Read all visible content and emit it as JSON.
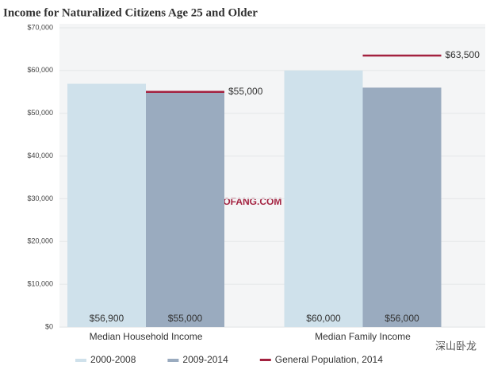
{
  "chart_data": {
    "type": "bar",
    "title": "Income for Naturalized Citizens Age 25 and Older",
    "categories": [
      "Median Household Income",
      "Median Family Income"
    ],
    "series": [
      {
        "name": "2000-2008",
        "color": "#cfe1eb",
        "values": [
          56900,
          60000
        ],
        "value_labels": [
          "$56,900",
          "$60,000"
        ]
      },
      {
        "name": "2009-2014",
        "color": "#9aabbf",
        "values": [
          55000,
          56000
        ],
        "value_labels": [
          "$55,000",
          "$56,000"
        ]
      },
      {
        "name": "General Population, 2014",
        "color": "#a3213f",
        "kind": "reference",
        "values": [
          55000,
          63500
        ],
        "value_labels": [
          "$55,000",
          "$63,500"
        ]
      }
    ],
    "ylim": [
      0,
      70000
    ],
    "yticks": [
      {
        "value": 0,
        "label": "$0"
      },
      {
        "value": 10000,
        "label": "$10,000"
      },
      {
        "value": 20000,
        "label": "$20,000"
      },
      {
        "value": 30000,
        "label": "$30,000"
      },
      {
        "value": 40000,
        "label": "$40,000"
      },
      {
        "value": 50000,
        "label": "$50,000"
      },
      {
        "value": 60000,
        "label": "$60,000"
      },
      {
        "value": 70000,
        "label": "$70,000"
      }
    ],
    "grid": true,
    "legend": "bottom",
    "watermarks": [
      "GLOFANG.COM",
      "深山卧龙"
    ]
  }
}
